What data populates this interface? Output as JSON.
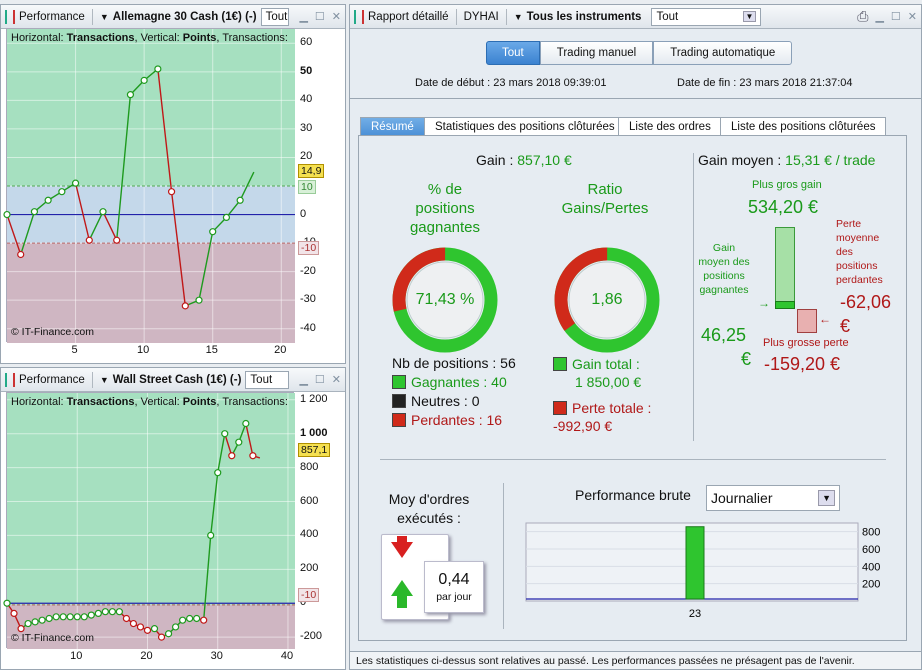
{
  "left_top": {
    "title": "Performance",
    "instrument": "Allemagne 30 Cash (1€) (-)",
    "filter": "Tout",
    "header_prefix1": "Horizontal: ",
    "header_h": "Transactions",
    "header_mid": ", Vertical: ",
    "header_v": "Points",
    "header_suffix": ", Transactions:",
    "copyright": "© IT-Finance.com",
    "current_value_label": "14,9",
    "upper_band_label": "10",
    "lower_band_label": "-10",
    "y_ticks": [
      "60",
      "50",
      "40",
      "30",
      "20",
      "10",
      "0",
      "-10",
      "-20",
      "-30",
      "-40"
    ],
    "x_ticks": [
      "5",
      "10",
      "15",
      "20"
    ],
    "colors": {
      "win_zone": "#a6e0c0",
      "mid_zone": "#c4d8ea",
      "loss_zone": "#cfb6c2",
      "up_line": "#1e9a1e",
      "down_line": "#c01818",
      "zero_line": "#2222aa"
    }
  },
  "left_bottom": {
    "title": "Performance",
    "instrument": "Wall Street Cash (1€) (-)",
    "filter": "Tout",
    "header_prefix1": "Horizontal: ",
    "header_h": "Transactions",
    "header_mid": ", Vertical: ",
    "header_v": "Points",
    "header_suffix": ", Transactions:",
    "copyright": "© IT-Finance.com",
    "current_value_label": "857,1",
    "lower_band_label": "-10",
    "y_ticks": [
      "1 200",
      "1 000",
      "800",
      "600",
      "400",
      "200",
      "0",
      "-200"
    ],
    "x_ticks": [
      "10",
      "20",
      "30",
      "40"
    ]
  },
  "chart_data": [
    {
      "type": "line",
      "title": "Allemagne 30 Cash (1€) (-)",
      "xlabel": "Transactions",
      "ylabel": "Points",
      "xlim": [
        0,
        21
      ],
      "ylim": [
        -45,
        65
      ],
      "x": [
        0,
        1,
        2,
        3,
        4,
        5,
        6,
        7,
        8,
        9,
        10,
        11,
        12,
        13,
        14,
        15,
        16,
        17,
        18
      ],
      "y": [
        0,
        -14,
        1,
        5,
        8,
        11,
        -9,
        1,
        -9,
        42,
        47,
        51,
        8,
        -32,
        -30,
        -6,
        -1,
        5,
        14.9
      ]
    },
    {
      "type": "line",
      "title": "Wall Street Cash (1€) (-)",
      "xlabel": "Transactions",
      "ylabel": "Points",
      "xlim": [
        0,
        41
      ],
      "ylim": [
        -270,
        1240
      ],
      "x": [
        0,
        1,
        2,
        3,
        4,
        5,
        6,
        7,
        8,
        9,
        10,
        11,
        12,
        13,
        14,
        15,
        16,
        17,
        18,
        19,
        20,
        21,
        22,
        23,
        24,
        25,
        26,
        27,
        28,
        29,
        30,
        31,
        32,
        33,
        34,
        35,
        36
      ],
      "y": [
        0,
        -60,
        -150,
        -120,
        -110,
        -100,
        -90,
        -80,
        -80,
        -80,
        -80,
        -80,
        -70,
        -60,
        -50,
        -50,
        -50,
        -90,
        -120,
        -140,
        -160,
        -150,
        -200,
        -180,
        -140,
        -100,
        -90,
        -90,
        -100,
        400,
        770,
        1000,
        870,
        950,
        1060,
        870,
        857.1
      ]
    }
  ],
  "report": {
    "title": "Rapport détaillé",
    "account": "DYHAI",
    "scope": "Tous les instruments",
    "filter": "Tout",
    "mode_tabs": [
      "Tout",
      "Trading manuel",
      "Trading automatique"
    ],
    "start_label": "Date de début :",
    "start_value": "23 mars 2018 09:39:01",
    "end_label": "Date de fin :",
    "end_value": "23 mars 2018 21:37:04",
    "tabs": [
      "Résumé",
      "Statistiques des positions clôturées",
      "Liste des ordres",
      "Liste des positions clôturées"
    ],
    "gain_label": "Gain :",
    "gain_value": "857,10 €",
    "pct_title_1": "% de",
    "pct_title_2": "positions",
    "pct_title_3": "gagnantes",
    "pct_value": "71,43 %",
    "pct_fraction": 0.7143,
    "ratio_title_1": "Ratio",
    "ratio_title_2": "Gains/Pertes",
    "ratio_value": "1,86",
    "ratio_fraction": 0.65,
    "nb_label": "Nb de positions : 56",
    "winners": "Gagnantes : 40",
    "neutral": "Neutres : 0",
    "losers": "Perdantes : 16",
    "gain_total_label": "Gain total :",
    "gain_total_value": "1 850,00 €",
    "loss_total_label": "Perte totale :",
    "loss_total_value": "-992,90 €",
    "avg_gain_label": "Gain moyen :",
    "avg_gain_value": "15,31 € / trade",
    "max_gain_label": "Plus gros gain",
    "max_gain_value": "534,20 €",
    "avg_win_label_1": "Gain",
    "avg_win_label_2": "moyen des",
    "avg_win_label_3": "positions",
    "avg_win_label_4": "gagnantes",
    "avg_win_value_1": "46,25",
    "avg_win_value_2": "€",
    "avg_loss_label_1": "Perte",
    "avg_loss_label_2": "moyenne",
    "avg_loss_label_3": "des",
    "avg_loss_label_4": "positions",
    "avg_loss_label_5": "perdantes",
    "avg_loss_value_1": "-62,06",
    "avg_loss_value_2": "€",
    "max_loss_label": "Plus grosse perte",
    "max_loss_value": "-159,20 €",
    "orders_title_1": "Moy d'ordres",
    "orders_title_2": "exécutés :",
    "orders_value": "0,44",
    "orders_unit": "par jour",
    "perf_title": "Performance brute",
    "perf_period": "Journalier",
    "perf_chart": {
      "type": "bar",
      "categories": [
        "23"
      ],
      "values": [
        857.1
      ],
      "ylim": [
        0,
        900
      ],
      "y_ticks": [
        "800",
        "600",
        "400",
        "200"
      ]
    },
    "footer": "Les statistiques ci-dessus sont relatives au passé. Les performances passées ne présagent pas de l'avenir."
  }
}
